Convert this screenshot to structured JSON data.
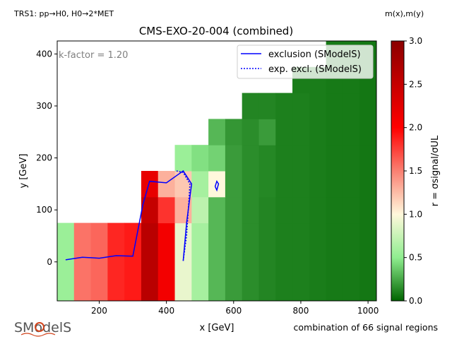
{
  "header": {
    "topology": "TRS1: $pp \\rightarrow H0, H0 \\rightarrow 2*MET$",
    "topology_display": "TRS1: pp→H0, H0→2*MET",
    "mass_label": "m(x),m(y)"
  },
  "footer": {
    "combination_note": "combination of 66 signal regions",
    "logo_text": "SModelS"
  },
  "chart_data": {
    "type": "heatmap",
    "title": "CMS-EXO-20-004 (combined)",
    "xlabel": "x [GeV]",
    "ylabel": "y [GeV]",
    "xlim": [
      75,
      1025
    ],
    "ylim": [
      -75,
      425
    ],
    "xticks": [
      200,
      400,
      600,
      800,
      1000
    ],
    "yticks": [
      0,
      100,
      200,
      300,
      400
    ],
    "annotation": "k-factor = 1.20",
    "colorbar": {
      "label": "r = σsignal/σUL",
      "range": [
        0.0,
        3.0
      ],
      "ticks": [
        0.0,
        0.5,
        1.0,
        1.5,
        2.0,
        2.5,
        3.0
      ],
      "colors": [
        "#006400",
        "#90EE90",
        "#FFF8DC",
        "#FA8072",
        "#FF0000",
        "#8B0000"
      ]
    },
    "grid_x_edges": [
      75,
      125,
      175,
      225,
      275,
      325,
      375,
      425,
      475,
      525,
      575,
      625,
      675,
      725,
      775,
      825,
      875,
      925,
      975,
      1025
    ],
    "grid_y_edges": [
      -75,
      75,
      125,
      175,
      225,
      275,
      325,
      375,
      425
    ],
    "cells": [
      [
        0,
        0,
        0.55
      ],
      [
        1,
        0,
        1.55
      ],
      [
        2,
        0,
        1.6
      ],
      [
        3,
        0,
        1.85
      ],
      [
        4,
        0,
        1.9
      ],
      [
        5,
        0,
        2.6
      ],
      [
        6,
        0,
        2.1
      ],
      [
        7,
        0,
        0.9
      ],
      [
        8,
        0,
        0.6
      ],
      [
        9,
        0,
        0.3
      ],
      [
        10,
        0,
        0.2
      ],
      [
        11,
        0,
        0.15
      ],
      [
        12,
        0,
        0.12
      ],
      [
        13,
        0,
        0.1
      ],
      [
        14,
        0,
        0.1
      ],
      [
        15,
        0,
        0.09
      ],
      [
        16,
        0,
        0.08
      ],
      [
        17,
        0,
        0.08
      ],
      [
        18,
        0,
        0.07
      ],
      [
        5,
        1,
        2.5
      ],
      [
        6,
        1,
        1.8
      ],
      [
        7,
        1,
        1.3
      ],
      [
        8,
        1,
        0.7
      ],
      [
        9,
        1,
        0.3
      ],
      [
        10,
        1,
        0.2
      ],
      [
        11,
        1,
        0.15
      ],
      [
        12,
        1,
        0.12
      ],
      [
        13,
        1,
        0.1
      ],
      [
        14,
        1,
        0.1
      ],
      [
        15,
        1,
        0.09
      ],
      [
        16,
        1,
        0.08
      ],
      [
        17,
        1,
        0.08
      ],
      [
        18,
        1,
        0.07
      ],
      [
        5,
        2,
        2.2
      ],
      [
        6,
        2,
        1.3
      ],
      [
        7,
        2,
        1.2
      ],
      [
        8,
        2,
        0.6
      ],
      [
        9,
        2,
        1.0
      ],
      [
        10,
        2,
        0.2
      ],
      [
        11,
        2,
        0.15
      ],
      [
        12,
        2,
        0.13
      ],
      [
        13,
        2,
        0.1
      ],
      [
        14,
        2,
        0.1
      ],
      [
        15,
        2,
        0.09
      ],
      [
        16,
        2,
        0.08
      ],
      [
        17,
        2,
        0.08
      ],
      [
        18,
        2,
        0.07
      ],
      [
        7,
        3,
        0.55
      ],
      [
        8,
        3,
        0.45
      ],
      [
        9,
        3,
        0.4
      ],
      [
        10,
        3,
        0.2
      ],
      [
        11,
        3,
        0.15
      ],
      [
        12,
        3,
        0.13
      ],
      [
        13,
        3,
        0.1
      ],
      [
        14,
        3,
        0.1
      ],
      [
        15,
        3,
        0.09
      ],
      [
        16,
        3,
        0.08
      ],
      [
        17,
        3,
        0.08
      ],
      [
        18,
        3,
        0.07
      ],
      [
        9,
        4,
        0.3
      ],
      [
        10,
        4,
        0.18
      ],
      [
        11,
        4,
        0.15
      ],
      [
        12,
        4,
        0.2
      ],
      [
        13,
        4,
        0.1
      ],
      [
        14,
        4,
        0.1
      ],
      [
        15,
        4,
        0.09
      ],
      [
        16,
        4,
        0.08
      ],
      [
        17,
        4,
        0.08
      ],
      [
        18,
        4,
        0.07
      ],
      [
        11,
        5,
        0.12
      ],
      [
        12,
        5,
        0.12
      ],
      [
        13,
        5,
        0.1
      ],
      [
        14,
        5,
        0.1
      ],
      [
        15,
        5,
        0.09
      ],
      [
        16,
        5,
        0.08
      ],
      [
        17,
        5,
        0.08
      ],
      [
        18,
        5,
        0.07
      ],
      [
        14,
        6,
        0.09
      ],
      [
        15,
        6,
        0.09
      ],
      [
        16,
        6,
        0.08
      ],
      [
        17,
        6,
        0.08
      ],
      [
        18,
        6,
        0.07
      ],
      [
        16,
        7,
        0.08
      ],
      [
        17,
        7,
        0.08
      ],
      [
        18,
        7,
        0.07
      ]
    ],
    "series": [
      {
        "name": "exclusion (SModelS)",
        "style": "solid",
        "color": "#0000FF",
        "segments": [
          [
            [
              100,
              4
            ],
            [
              150,
              9
            ],
            [
              200,
              7
            ],
            [
              250,
              12
            ],
            [
              300,
              11
            ],
            [
              330,
              110
            ],
            [
              350,
              155
            ],
            [
              400,
              152
            ],
            [
              450,
              175
            ],
            [
              475,
              150
            ],
            [
              460,
              75
            ],
            [
              450,
              2
            ]
          ],
          [
            [
              545,
              145
            ],
            [
              550,
              155
            ],
            [
              555,
              150
            ],
            [
              550,
              138
            ],
            [
              545,
              145
            ]
          ]
        ]
      },
      {
        "name": "exp. excl. (SModelS)",
        "style": "dotted",
        "color": "#0000FF",
        "segments": [
          [
            [
              430,
              175
            ],
            [
              450,
              172
            ],
            [
              470,
              150
            ],
            [
              465,
              100
            ],
            [
              460,
              50
            ],
            [
              450,
              2
            ]
          ]
        ]
      }
    ]
  }
}
